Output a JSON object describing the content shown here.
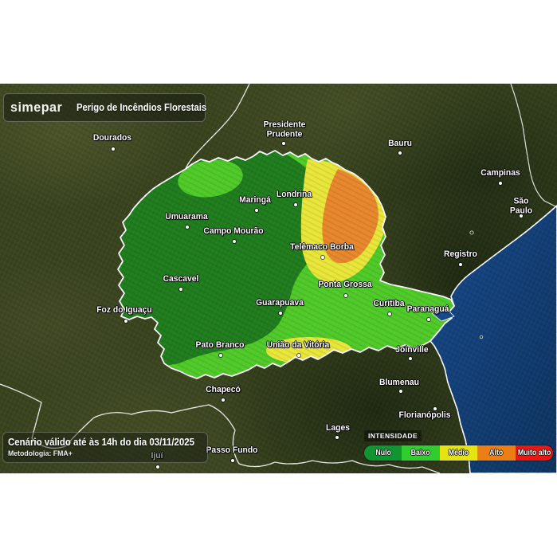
{
  "header": {
    "brand": "simepar",
    "title": "Perigo de Incêndios Florestais"
  },
  "caption": {
    "line1": "Cenário válido até às 14h do dia 03/11/2025",
    "line2": "Metodologia: FMA+"
  },
  "legend": {
    "title": "INTENSIDADE",
    "items": [
      {
        "label": "Nulo",
        "color": "#119432"
      },
      {
        "label": "Baixo",
        "color": "#30cc30"
      },
      {
        "label": "Médio",
        "color": "#e6e312"
      },
      {
        "label": "Alto",
        "color": "#ec7e16"
      },
      {
        "label": "Muito alto",
        "color": "#ee1515"
      }
    ]
  },
  "map": {
    "colors": {
      "nulo": "#1f7d1d",
      "baixo": "#4fca28",
      "medio": "#e9e63a",
      "alto": "#e8872c",
      "ocean": "#17498c",
      "ocean_deep": "#0d345f",
      "border": "#ffffff"
    },
    "cities_parana": [
      {
        "name": "Umuarama",
        "label": [
          234,
          273
        ],
        "dot": [
          235,
          285
        ]
      },
      {
        "name": "Maringá",
        "label": [
          320,
          252
        ],
        "dot": [
          322,
          264
        ]
      },
      {
        "name": "Londrina",
        "label": [
          369,
          245
        ],
        "dot": [
          371,
          257
        ]
      },
      {
        "name": "Campo Mourão",
        "label": [
          293,
          291
        ],
        "dot": [
          294,
          303
        ]
      },
      {
        "name": "Telêmaco Borba",
        "label": [
          404,
          311
        ],
        "dot": [
          405,
          323
        ]
      },
      {
        "name": "Cascavel",
        "label": [
          227,
          351
        ],
        "dot": [
          227,
          363
        ]
      },
      {
        "name": "Ponta Grossa",
        "label": [
          433,
          358
        ],
        "dot": [
          434,
          371
        ]
      },
      {
        "name": "Guarapuava",
        "label": [
          351,
          381
        ],
        "dot": [
          352,
          393
        ]
      },
      {
        "name": "Curitiba",
        "label": [
          488,
          382
        ],
        "dot": [
          489,
          394
        ]
      },
      {
        "name": "Paranaguá",
        "label": [
          537,
          389
        ],
        "dot": [
          538,
          401
        ]
      },
      {
        "name": "Foz do Iguaçu",
        "label": [
          156,
          390
        ],
        "dot": [
          158,
          403
        ]
      },
      {
        "name": "Pato Branco",
        "label": [
          276,
          434
        ],
        "dot": [
          277,
          446
        ]
      },
      {
        "name": "União da Vitória",
        "label": [
          374,
          434
        ],
        "dot": [
          375,
          446
        ]
      }
    ],
    "cities_other": [
      {
        "name": "Dourados",
        "label": [
          141,
          174
        ],
        "dot": [
          142,
          187
        ]
      },
      {
        "name": "Presidente\nPrudente",
        "label": [
          357,
          163
        ],
        "dot": [
          356,
          180
        ]
      },
      {
        "name": "Bauru",
        "label": [
          502,
          181
        ],
        "dot": [
          502,
          192
        ]
      },
      {
        "name": "Campinas",
        "label": [
          628,
          218
        ],
        "dot": [
          628,
          230
        ]
      },
      {
        "name": "São Paulo",
        "label": [
          654,
          259
        ],
        "dot": [
          654,
          271
        ]
      },
      {
        "name": "Registro",
        "label": [
          578,
          320
        ],
        "dot": [
          578,
          332
        ]
      },
      {
        "name": "Joinville",
        "label": [
          517,
          440
        ],
        "dot": [
          515,
          450
        ]
      },
      {
        "name": "Blumenau",
        "label": [
          501,
          481
        ],
        "dot": [
          503,
          491
        ]
      },
      {
        "name": "Florianópolis",
        "label": [
          533,
          522
        ],
        "dot": [
          546,
          513
        ]
      },
      {
        "name": "Chapecó",
        "label": [
          280,
          490
        ],
        "dot": [
          280,
          502
        ]
      },
      {
        "name": "Lages",
        "label": [
          424,
          538
        ],
        "dot": [
          423,
          549
        ]
      },
      {
        "name": "Passo Fundo",
        "label": [
          291,
          566
        ],
        "dot": [
          292,
          578
        ]
      },
      {
        "name": "Ijuí",
        "label": [
          197,
          573
        ],
        "dot": [
          198,
          586
        ]
      }
    ]
  }
}
